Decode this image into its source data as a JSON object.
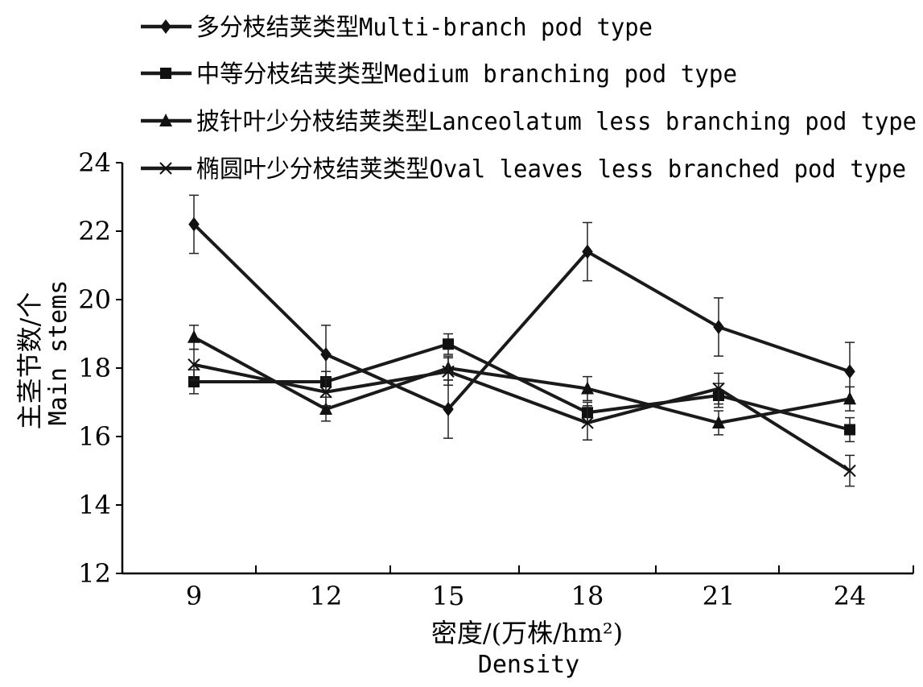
{
  "chart_data": {
    "type": "line",
    "x": [
      9,
      12,
      15,
      18,
      21,
      24
    ],
    "xlabel_line1": "密度/(万株/hm²)",
    "xlabel_line2": "Density",
    "ylabel_line1": "主茎节数/个",
    "ylabel_line2": "Main stems",
    "ylim": [
      12,
      24
    ],
    "yticks": [
      12,
      14,
      16,
      18,
      20,
      22,
      24
    ],
    "legend_position": "top",
    "grid": false,
    "series": [
      {
        "name": "多分枝结荚类型 Multi-branch pod type",
        "marker": "diamond",
        "values": [
          22.2,
          18.4,
          16.8,
          21.4,
          19.2,
          17.9
        ],
        "errors": [
          0.85,
          0.85,
          0.85,
          0.85,
          0.85,
          0.85
        ]
      },
      {
        "name": "中等分枝结荚类型 Medium branching pod type",
        "marker": "square",
        "values": [
          17.6,
          17.6,
          18.7,
          16.7,
          17.2,
          16.2
        ],
        "errors": [
          0.35,
          0.3,
          0.3,
          0.3,
          0.35,
          0.35
        ]
      },
      {
        "name": "披针叶少分枝结荚类型 Lanceolatum less branching pod type",
        "marker": "triangle",
        "values": [
          18.9,
          16.8,
          18.0,
          17.4,
          16.4,
          17.1
        ],
        "errors": [
          0.35,
          0.35,
          0.35,
          0.35,
          0.35,
          0.35
        ]
      },
      {
        "name": "椭圆叶少分枝结荚类型 Oval leaves less branched pod type",
        "marker": "x",
        "values": [
          18.1,
          17.3,
          17.9,
          16.4,
          17.4,
          15.0
        ],
        "errors": [
          0.45,
          0.4,
          0.4,
          0.5,
          0.45,
          0.45
        ]
      }
    ]
  }
}
